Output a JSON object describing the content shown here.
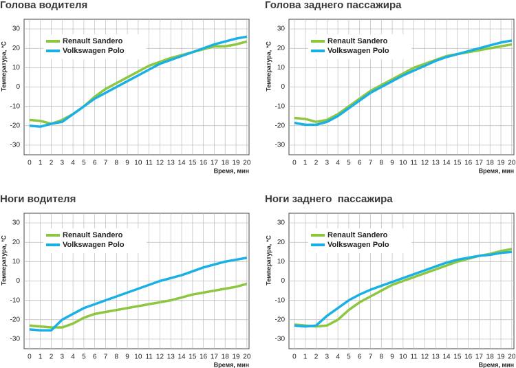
{
  "chart_data": [
    {
      "type": "line",
      "title": "Голова водителя",
      "xlabel": "Время, мин",
      "ylabel": "Температура, °С",
      "x": [
        0,
        1,
        2,
        3,
        4,
        5,
        6,
        7,
        8,
        9,
        10,
        11,
        12,
        13,
        14,
        15,
        16,
        17,
        18,
        19,
        20
      ],
      "xlim": [
        -0.5,
        20.2
      ],
      "ylim": [
        -35,
        35
      ],
      "xticks": [
        0,
        1,
        2,
        3,
        4,
        5,
        6,
        7,
        8,
        9,
        10,
        11,
        12,
        13,
        14,
        15,
        16,
        17,
        18,
        19,
        20
      ],
      "yticks": [
        -30,
        -20,
        -10,
        0,
        10,
        20,
        30
      ],
      "grid": true,
      "legend": "upper left",
      "series": [
        {
          "name": "Renault Sandero",
          "color": "#8dc63f",
          "values": [
            -17,
            -17.5,
            -19,
            -17,
            -14,
            -10,
            -5,
            -1,
            2,
            5,
            8,
            11,
            13,
            15,
            16.5,
            18,
            19.5,
            21,
            21,
            22,
            23.5
          ]
        },
        {
          "name": "Volkswagen Polo",
          "color": "#1ab0e6",
          "values": [
            -20,
            -20.5,
            -19,
            -18,
            -14,
            -10,
            -6,
            -3,
            0,
            3,
            6,
            9,
            12,
            14,
            16,
            18,
            20,
            22,
            23.5,
            25,
            26
          ]
        }
      ]
    },
    {
      "type": "line",
      "title": "Голова заднего пассажира",
      "xlabel": "Время, мин",
      "ylabel": "Температура, °С",
      "x": [
        0,
        1,
        2,
        3,
        4,
        5,
        6,
        7,
        8,
        9,
        10,
        11,
        12,
        13,
        14,
        15,
        16,
        17,
        18,
        19,
        20
      ],
      "xlim": [
        -0.5,
        20.2
      ],
      "ylim": [
        -35,
        35
      ],
      "xticks": [
        0,
        1,
        2,
        3,
        4,
        5,
        6,
        7,
        8,
        9,
        10,
        11,
        12,
        13,
        14,
        15,
        16,
        17,
        18,
        19,
        20
      ],
      "yticks": [
        -30,
        -20,
        -10,
        0,
        10,
        20,
        30
      ],
      "grid": true,
      "legend": "upper left",
      "series": [
        {
          "name": "Renault Sandero",
          "color": "#8dc63f",
          "values": [
            -16,
            -16.5,
            -18,
            -17,
            -14,
            -10,
            -6,
            -2,
            1,
            4,
            7,
            10,
            12,
            14,
            16,
            17,
            18,
            19,
            20,
            21,
            22
          ]
        },
        {
          "name": "Volkswagen Polo",
          "color": "#1ab0e6",
          "values": [
            -18.5,
            -19.5,
            -19.5,
            -18,
            -15,
            -11,
            -7,
            -3,
            0,
            3,
            6,
            8.5,
            11,
            13.5,
            15.5,
            17,
            18.5,
            20,
            21.5,
            23,
            24
          ]
        }
      ]
    },
    {
      "type": "line",
      "title": "Ноги водителя",
      "xlabel": "Время, мин",
      "ylabel": "Температура, °С",
      "x": [
        0,
        1,
        2,
        3,
        4,
        5,
        6,
        7,
        8,
        9,
        10,
        11,
        12,
        13,
        14,
        15,
        16,
        17,
        18,
        19,
        20
      ],
      "xlim": [
        -0.5,
        20.2
      ],
      "ylim": [
        -35,
        35
      ],
      "xticks": [
        0,
        1,
        2,
        3,
        4,
        5,
        6,
        7,
        8,
        9,
        10,
        11,
        12,
        13,
        14,
        15,
        16,
        17,
        18,
        19,
        20
      ],
      "yticks": [
        -30,
        -20,
        -10,
        0,
        10,
        20,
        30
      ],
      "grid": true,
      "legend": "upper left",
      "series": [
        {
          "name": "Renault Sandero",
          "color": "#8dc63f",
          "values": [
            -23,
            -23.5,
            -24,
            -24,
            -22,
            -19,
            -17,
            -16,
            -15,
            -14,
            -13,
            -12,
            -11,
            -10,
            -8.5,
            -7,
            -6,
            -5,
            -4,
            -3,
            -1.5
          ]
        },
        {
          "name": "Volkswagen Polo",
          "color": "#1ab0e6",
          "values": [
            -25,
            -25.5,
            -25.5,
            -20,
            -17,
            -14,
            -12,
            -10,
            -8,
            -6,
            -4,
            -2,
            0,
            1.5,
            3,
            5,
            7,
            8.5,
            10,
            11,
            12
          ]
        }
      ]
    },
    {
      "type": "line",
      "title": "Ноги заднего  пассажира",
      "xlabel": "Время, мин",
      "ylabel": "Температура, °С",
      "x": [
        0,
        1,
        2,
        3,
        4,
        5,
        6,
        7,
        8,
        9,
        10,
        11,
        12,
        13,
        14,
        15,
        16,
        17,
        18,
        19,
        20
      ],
      "xlim": [
        -0.5,
        20.2
      ],
      "ylim": [
        -35,
        35
      ],
      "xticks": [
        0,
        1,
        2,
        3,
        4,
        5,
        6,
        7,
        8,
        9,
        10,
        11,
        12,
        13,
        14,
        15,
        16,
        17,
        18,
        19,
        20
      ],
      "yticks": [
        -30,
        -20,
        -10,
        0,
        10,
        20,
        30
      ],
      "grid": true,
      "legend": "upper left",
      "series": [
        {
          "name": "Renault Sandero",
          "color": "#8dc63f",
          "values": [
            -22.5,
            -23,
            -23.5,
            -23,
            -20,
            -15,
            -11,
            -8,
            -5,
            -2,
            0,
            2,
            4,
            6,
            8,
            10,
            11.5,
            13,
            14,
            15.5,
            16.5
          ]
        },
        {
          "name": "Volkswagen Polo",
          "color": "#1ab0e6",
          "values": [
            -23,
            -23.5,
            -23,
            -18,
            -14,
            -10,
            -7,
            -4.5,
            -2.5,
            -0.5,
            1.5,
            3.5,
            5.5,
            7.5,
            9.5,
            11,
            12,
            13,
            13.5,
            14.5,
            15
          ]
        }
      ]
    }
  ]
}
